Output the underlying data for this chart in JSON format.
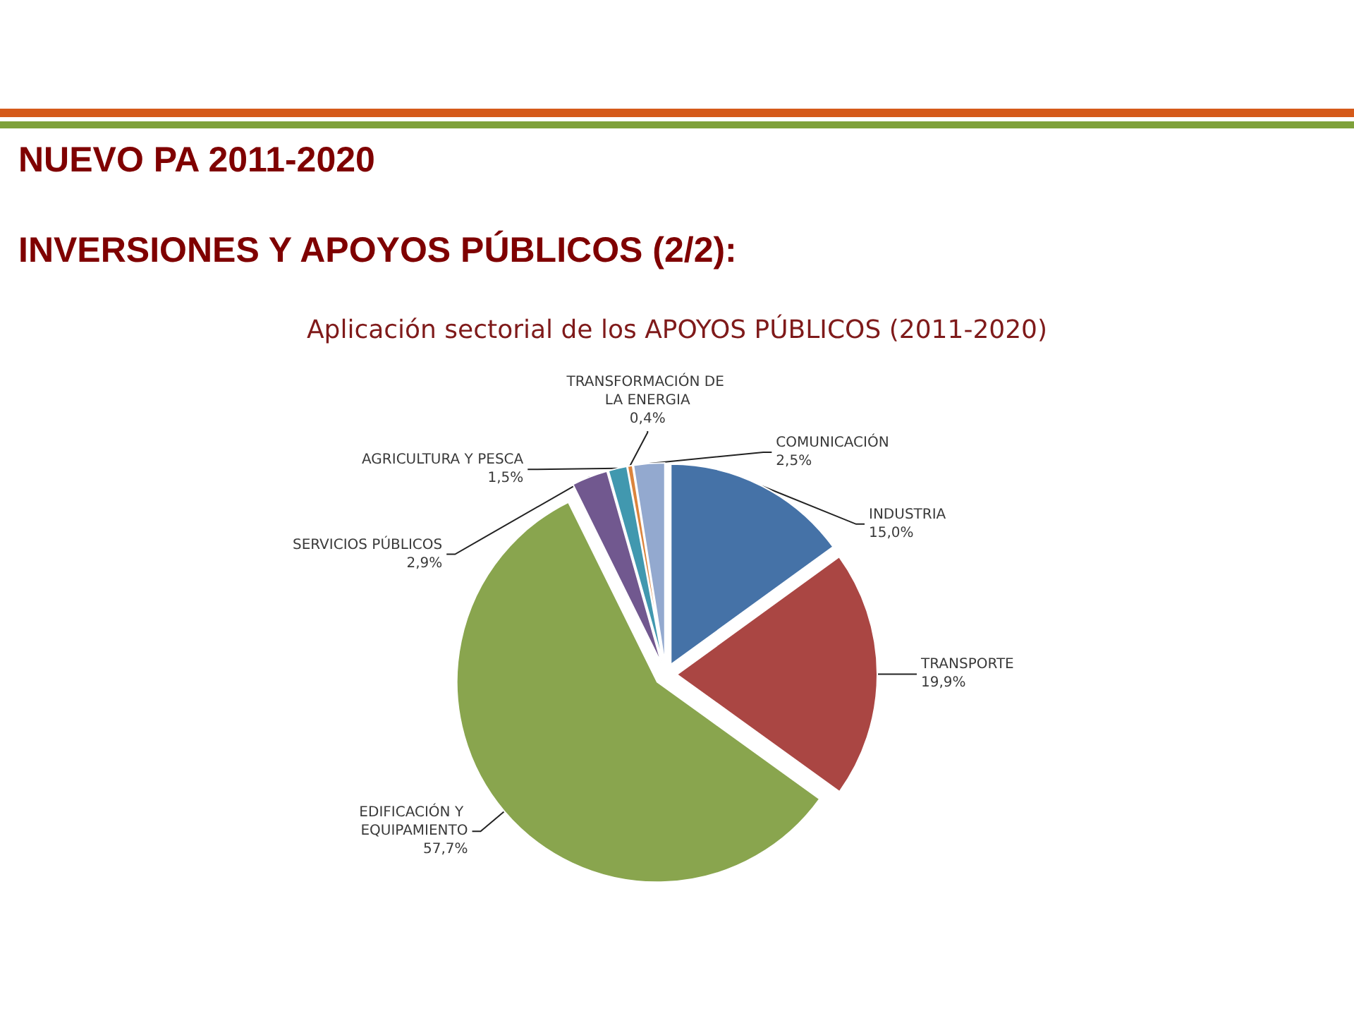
{
  "chart_data": {
    "type": "pie",
    "title": "NUEVO PA 2011-2020",
    "subtitle": "INVERSIONES Y APOYOS PÚBLICOS (2/2):",
    "annotations": [
      "Aplicación sectorial de los APOYOS PÚBLICOS (2011-2020)"
    ],
    "categories": [
      "INDUSTRIA",
      "TRANSPORTE",
      "EDIFICACIÓN Y EQUIPAMIENTO",
      "SERVICIOS PÚBLICOS",
      "AGRICULTURA Y PESCA",
      "TRANSFORMACIÓN DE LA ENERGIA",
      "COMUNICACIÓN"
    ],
    "values": [
      15.0,
      19.9,
      57.7,
      2.9,
      1.5,
      0.4,
      2.5
    ],
    "value_labels": [
      "15,0%",
      "19,9%",
      "57,7%",
      "2,9%",
      "1,5%",
      "0,4%",
      "2,5%"
    ],
    "colors": [
      "#4572a7",
      "#aa4643",
      "#89a54e",
      "#71588f",
      "#4198af",
      "#db843d",
      "#93a9cf"
    ]
  }
}
